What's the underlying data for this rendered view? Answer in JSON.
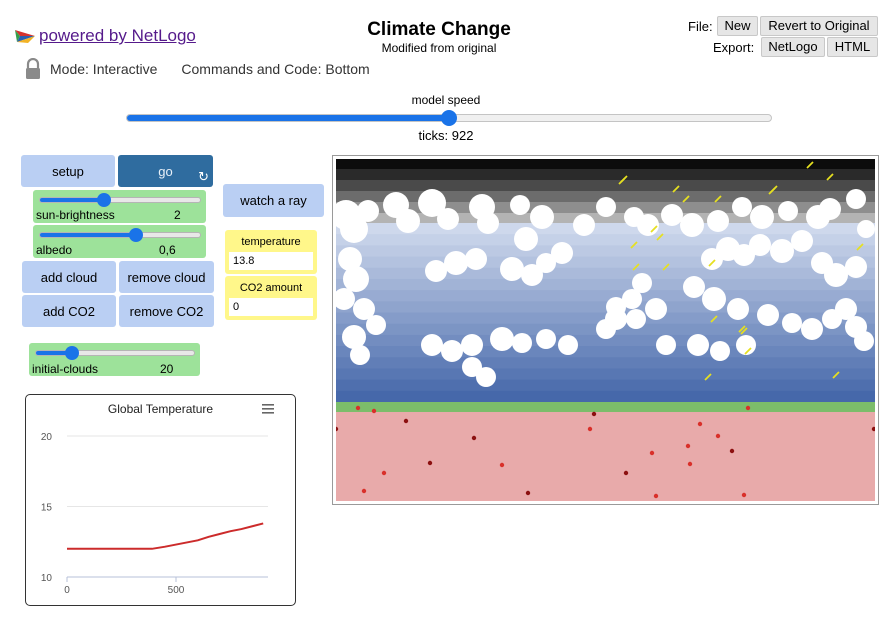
{
  "header": {
    "powered_by": "powered by NetLogo",
    "title": "Climate Change",
    "subtitle": "Modified from original",
    "file_label": "File:",
    "new_label": "New",
    "revert_label": "Revert to Original",
    "export_label": "Export:",
    "export_netlogo": "NetLogo",
    "export_html": "HTML",
    "mode_label": "Mode: Interactive",
    "commands_label": "Commands and Code: Bottom"
  },
  "speed": {
    "label": "model speed",
    "value": 0.5,
    "ticks_label": "ticks: 922"
  },
  "buttons": {
    "setup": "setup",
    "go": "go",
    "watch_ray": "watch a ray",
    "add_cloud": "add cloud",
    "remove_cloud": "remove cloud",
    "add_co2": "add CO2",
    "remove_co2": "remove CO2"
  },
  "sliders": {
    "sun_brightness": {
      "name": "sun-brightness",
      "value": "2",
      "fraction": 0.4
    },
    "albedo": {
      "name": "albedo",
      "value": "0,6",
      "fraction": 0.6
    },
    "initial_clouds": {
      "name": "initial-clouds",
      "value": "20",
      "fraction": 0.23
    }
  },
  "monitors": {
    "temperature": {
      "name": "temperature",
      "value": "13.8"
    },
    "co2": {
      "name": "CO2 amount",
      "value": "0"
    }
  },
  "icons": {
    "logo": "netlogo-logo-icon",
    "lock": "lock-icon",
    "go_forever": "forever-refresh-icon",
    "menu": "hamburger-menu-icon"
  },
  "colors": {
    "accent": "#1a73e8",
    "button": "#bacff3",
    "go_button": "#2f6c9f",
    "slider": "#9de29a",
    "monitor": "#fff78a",
    "earth_surface": "#e8aaaa",
    "grass": "#7cbd6a"
  },
  "chart_data": {
    "type": "line",
    "title": "Global Temperature",
    "xlabel": "",
    "ylabel": "",
    "xlim": [
      0,
      922
    ],
    "ylim": [
      10,
      20
    ],
    "x_ticks": [
      "0",
      "500"
    ],
    "y_ticks": [
      "10",
      "15",
      "20"
    ],
    "grid": true,
    "series": [
      {
        "color": "#cc2b2b",
        "x": [
          0,
          100,
          200,
          300,
          390,
          450,
          500,
          550,
          600,
          650,
          700,
          750,
          800,
          850,
          900
        ],
        "y": [
          12.0,
          12.0,
          12.0,
          12.0,
          12.0,
          12.15,
          12.3,
          12.45,
          12.6,
          12.85,
          13.05,
          13.25,
          13.4,
          13.6,
          13.8
        ]
      }
    ]
  }
}
